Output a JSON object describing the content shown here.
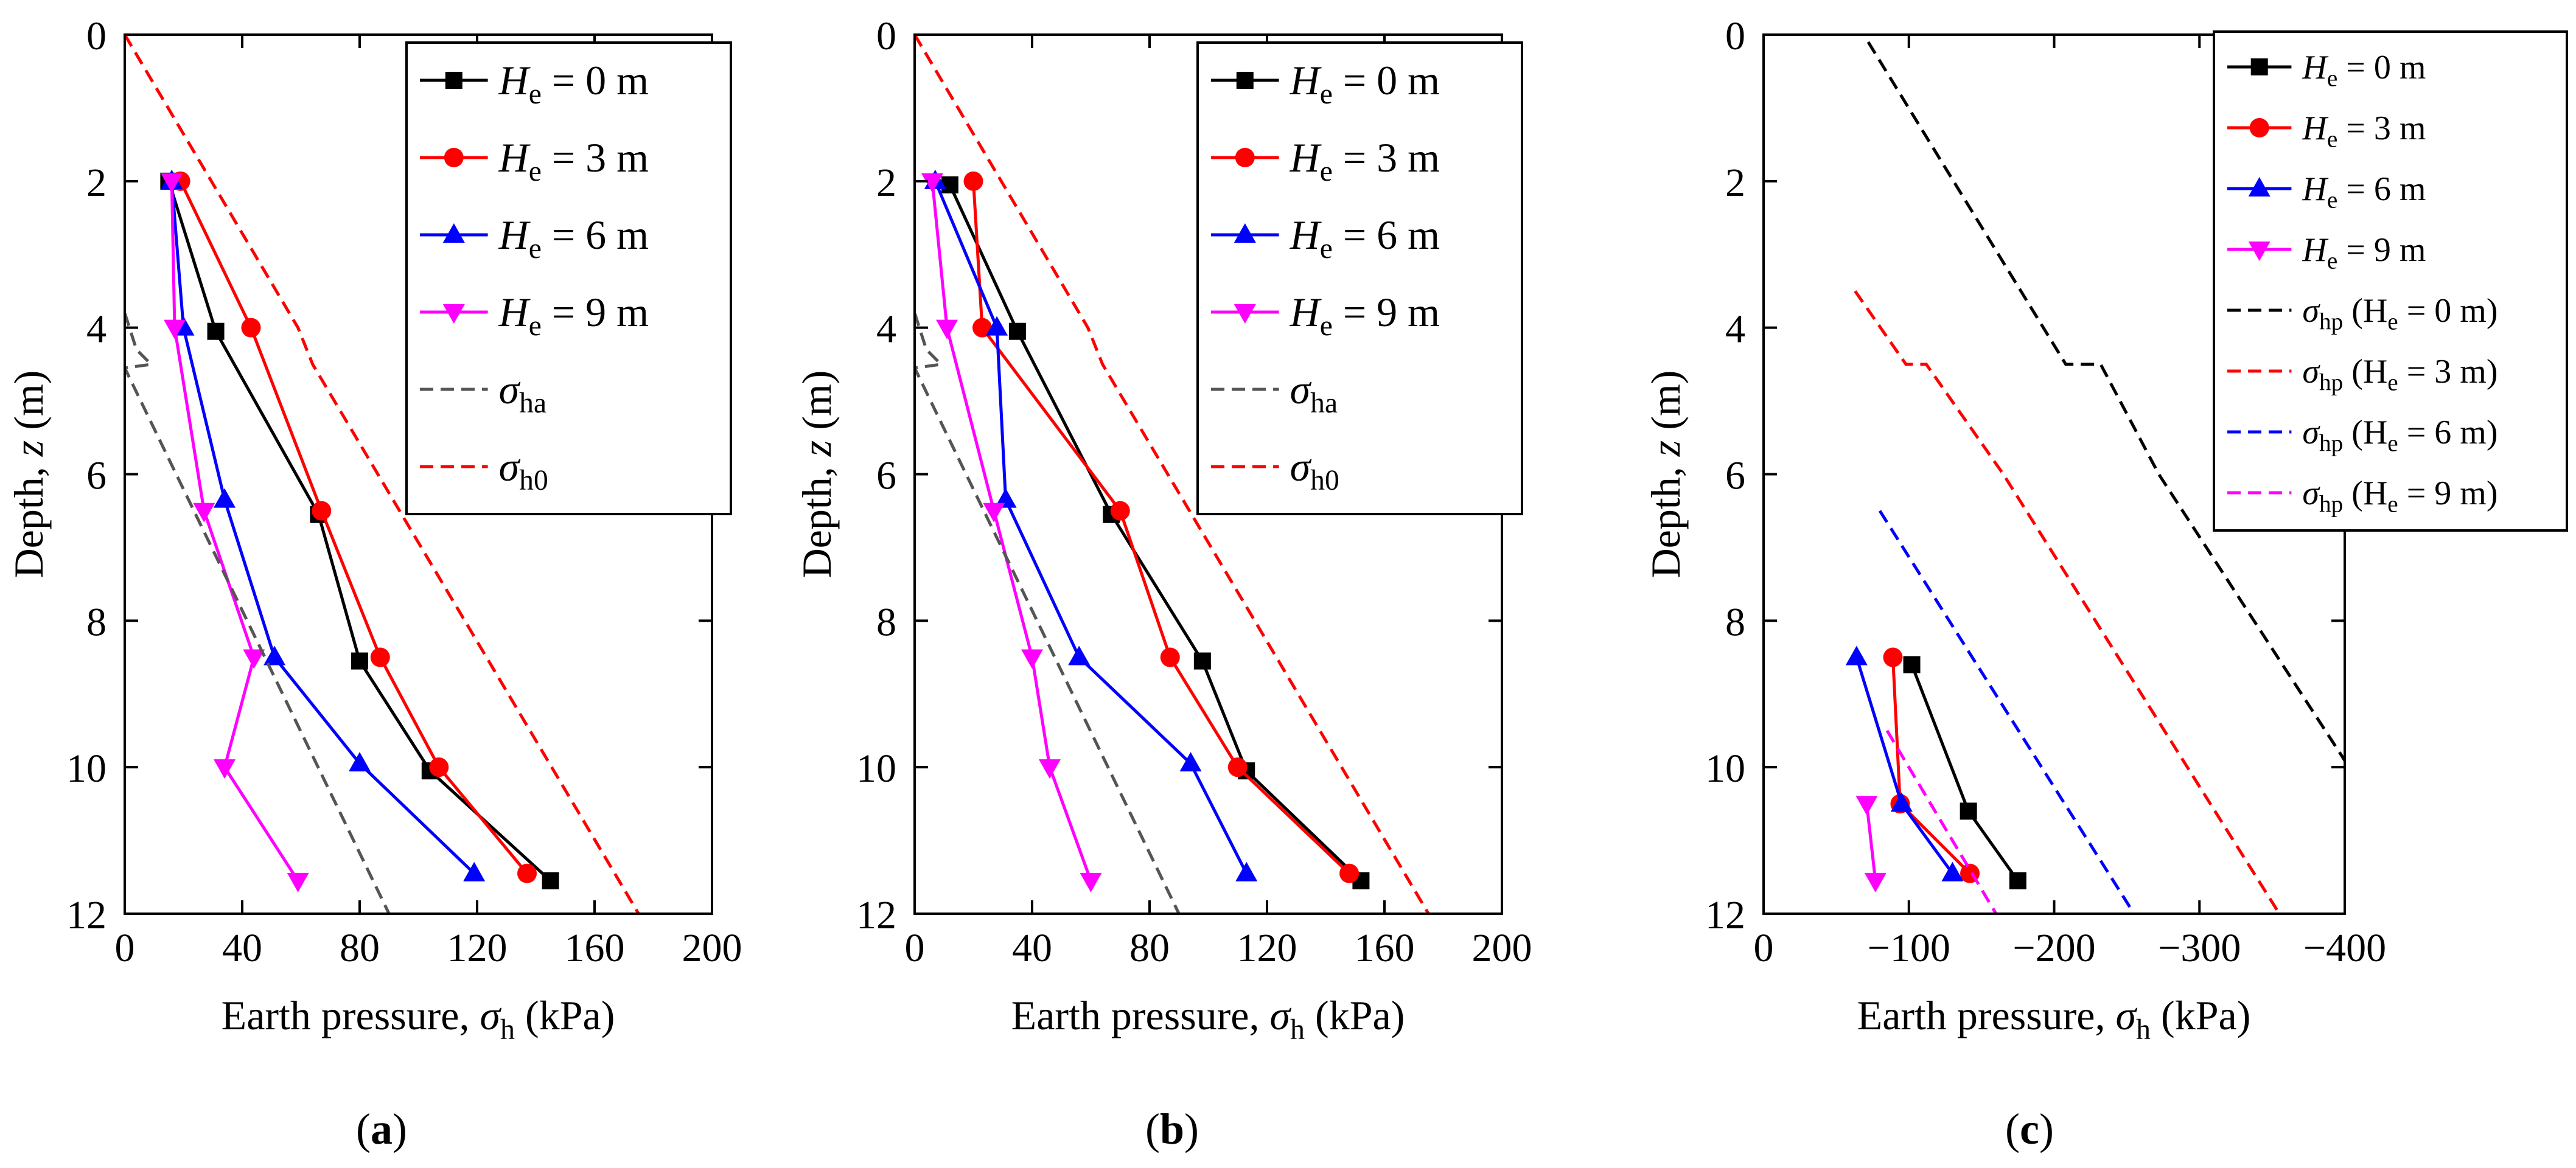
{
  "colors": {
    "black": "#000000",
    "red": "#ff0000",
    "blue": "#0000ff",
    "magenta": "#ff00ff",
    "gray": "#555555"
  },
  "chart_data": [
    {
      "panel": "a",
      "panel_label": "a",
      "type": "line",
      "xlabel": "Earth pressure, σh (kPa)",
      "ylabel": "Depth, z (m)",
      "xlim": [
        0,
        200
      ],
      "ylim": [
        12,
        0
      ],
      "xticks": [
        0,
        40,
        80,
        120,
        160,
        200
      ],
      "yticks": [
        0,
        2,
        4,
        6,
        8,
        10,
        12
      ],
      "legend_position": "top-right",
      "series": [
        {
          "name": "He = 0 m",
          "var": "H",
          "sub": "e",
          "rest": " = 0 m",
          "color": "#000000",
          "marker": "square",
          "style": "solid",
          "points": [
            [
              15,
              2.0
            ],
            [
              31,
              4.05
            ],
            [
              66,
              6.55
            ],
            [
              80,
              8.55
            ],
            [
              104,
              10.05
            ],
            [
              145,
              11.55
            ]
          ]
        },
        {
          "name": "He = 3 m",
          "var": "H",
          "sub": "e",
          "rest": " = 3 m",
          "color": "#ff0000",
          "marker": "circle",
          "style": "solid",
          "points": [
            [
              19,
              2.0
            ],
            [
              43,
              4.0
            ],
            [
              67,
              6.5
            ],
            [
              87,
              8.5
            ],
            [
              107,
              10.0
            ],
            [
              137,
              11.45
            ]
          ]
        },
        {
          "name": "He = 6 m",
          "var": "H",
          "sub": "e",
          "rest": " = 6 m",
          "color": "#0000ff",
          "marker": "triangle-up",
          "style": "solid",
          "points": [
            [
              16,
              2.0
            ],
            [
              20,
              4.0
            ],
            [
              34,
              6.35
            ],
            [
              51,
              8.5
            ],
            [
              80,
              9.95
            ],
            [
              119,
              11.45
            ]
          ]
        },
        {
          "name": "He = 9 m",
          "var": "H",
          "sub": "e",
          "rest": " = 9 m",
          "color": "#ff00ff",
          "marker": "triangle-down",
          "style": "solid",
          "points": [
            [
              16,
              2.0
            ],
            [
              17,
              4.0
            ],
            [
              27,
              6.5
            ],
            [
              44,
              8.5
            ],
            [
              34,
              10.0
            ],
            [
              59,
              11.55
            ]
          ]
        },
        {
          "name": "σha",
          "var": "σ",
          "sub": "ha",
          "rest": "",
          "color": "#555555",
          "marker": "none",
          "style": "dashed",
          "points": [
            [
              0,
              3.8
            ],
            [
              4,
              4.3
            ],
            [
              9,
              4.5
            ],
            [
              0,
              4.55
            ],
            [
              90,
              12.0
            ]
          ]
        },
        {
          "name": "σh0",
          "var": "σ",
          "sub": "h0",
          "rest": "",
          "color": "#ff0000",
          "marker": "none",
          "style": "dashed",
          "points": [
            [
              0,
              0.0
            ],
            [
              59,
              4.0
            ],
            [
              64,
              4.5
            ],
            [
              175,
              12.0
            ]
          ]
        }
      ]
    },
    {
      "panel": "b",
      "panel_label": "b",
      "type": "line",
      "xlabel": "Earth pressure, σh (kPa)",
      "ylabel": "Depth, z (m)",
      "xlim": [
        0,
        200
      ],
      "ylim": [
        12,
        0
      ],
      "xticks": [
        0,
        40,
        80,
        120,
        160,
        200
      ],
      "yticks": [
        0,
        2,
        4,
        6,
        8,
        10,
        12
      ],
      "legend_position": "top-right",
      "series": [
        {
          "name": "He = 0 m",
          "var": "H",
          "sub": "e",
          "rest": " = 0 m",
          "color": "#000000",
          "marker": "square",
          "style": "solid",
          "points": [
            [
              12,
              2.05
            ],
            [
              35,
              4.05
            ],
            [
              67,
              6.55
            ],
            [
              98,
              8.55
            ],
            [
              113,
              10.05
            ],
            [
              152,
              11.55
            ]
          ]
        },
        {
          "name": "He = 3 m",
          "var": "H",
          "sub": "e",
          "rest": " = 3 m",
          "color": "#ff0000",
          "marker": "circle",
          "style": "solid",
          "points": [
            [
              20,
              2.0
            ],
            [
              23,
              4.0
            ],
            [
              70,
              6.5
            ],
            [
              87,
              8.5
            ],
            [
              110,
              10.0
            ],
            [
              148,
              11.45
            ]
          ]
        },
        {
          "name": "He = 6 m",
          "var": "H",
          "sub": "e",
          "rest": " = 6 m",
          "color": "#0000ff",
          "marker": "triangle-up",
          "style": "solid",
          "points": [
            [
              7,
              2.0
            ],
            [
              28,
              4.0
            ],
            [
              31,
              6.35
            ],
            [
              56,
              8.5
            ],
            [
              94,
              9.95
            ],
            [
              113,
              11.45
            ]
          ]
        },
        {
          "name": "He = 9 m",
          "var": "H",
          "sub": "e",
          "rest": " = 9 m",
          "color": "#ff00ff",
          "marker": "triangle-down",
          "style": "solid",
          "points": [
            [
              6,
              2.0
            ],
            [
              11,
              4.0
            ],
            [
              27,
              6.5
            ],
            [
              40,
              8.5
            ],
            [
              46,
              10.0
            ],
            [
              60,
              11.55
            ]
          ]
        },
        {
          "name": "σha",
          "var": "σ",
          "sub": "ha",
          "rest": "",
          "color": "#555555",
          "marker": "none",
          "style": "dashed",
          "points": [
            [
              0,
              3.8
            ],
            [
              4,
              4.3
            ],
            [
              9,
              4.5
            ],
            [
              0,
              4.55
            ],
            [
              90,
              12.0
            ]
          ]
        },
        {
          "name": "σh0",
          "var": "σ",
          "sub": "h0",
          "rest": "",
          "color": "#ff0000",
          "marker": "none",
          "style": "dashed",
          "points": [
            [
              0,
              0.0
            ],
            [
              59,
              4.0
            ],
            [
              64,
              4.5
            ],
            [
              175,
              12.0
            ]
          ]
        }
      ]
    },
    {
      "panel": "c",
      "panel_label": "c",
      "type": "line",
      "xlabel": "Earth pressure, σh (kPa)",
      "ylabel": "Depth, z (m)",
      "xlim": [
        0,
        -400
      ],
      "ylim": [
        12,
        0
      ],
      "xticks": [
        0,
        -100,
        -200,
        -300,
        -400
      ],
      "xtick_labels": [
        "0",
        "−100",
        "−200",
        "−300",
        "−400"
      ],
      "yticks": [
        0,
        2,
        4,
        6,
        8,
        10,
        12
      ],
      "legend_position": "top-right",
      "series": [
        {
          "name": "He = 0 m",
          "var": "H",
          "sub": "e",
          "rest": " = 0 m",
          "color": "#000000",
          "marker": "square",
          "style": "solid",
          "points": [
            [
              -102,
              8.6
            ],
            [
              -141,
              10.6
            ],
            [
              -175,
              11.55
            ]
          ]
        },
        {
          "name": "He = 3 m",
          "var": "H",
          "sub": "e",
          "rest": " = 3 m",
          "color": "#ff0000",
          "marker": "circle",
          "style": "solid",
          "points": [
            [
              -89,
              8.5
            ],
            [
              -94,
              10.5
            ],
            [
              -142,
              11.45
            ]
          ]
        },
        {
          "name": "He = 6 m",
          "var": "H",
          "sub": "e",
          "rest": " = 6 m",
          "color": "#0000ff",
          "marker": "triangle-up",
          "style": "solid",
          "points": [
            [
              -64,
              8.5
            ],
            [
              -95,
              10.5
            ],
            [
              -130,
              11.45
            ]
          ]
        },
        {
          "name": "He = 9 m",
          "var": "H",
          "sub": "e",
          "rest": " = 9 m",
          "color": "#ff00ff",
          "marker": "triangle-down",
          "style": "solid",
          "points": [
            [
              -71,
              10.5
            ],
            [
              -77,
              11.55
            ]
          ]
        },
        {
          "name": "σhp (He = 0 m)",
          "var": "σ",
          "sub": "hp",
          "rest": " (H",
          "sub2": "e",
          "rest2": " = 0 m)",
          "color": "#000000",
          "marker": "none",
          "style": "dashed",
          "points": [
            [
              -72,
              0.1
            ],
            [
              -208,
              4.5
            ],
            [
              -232,
              4.5
            ],
            [
              -272,
              6.0
            ],
            [
              -403,
              10.0
            ]
          ]
        },
        {
          "name": "σhp (He = 3 m)",
          "var": "σ",
          "sub": "hp",
          "rest": " (H",
          "sub2": "e",
          "rest2": " = 3 m)",
          "color": "#ff0000",
          "marker": "none",
          "style": "dashed",
          "points": [
            [
              -63,
              3.5
            ],
            [
              -98,
              4.5
            ],
            [
              -112,
              4.5
            ],
            [
              -165,
              6.0
            ],
            [
              -355,
              12.0
            ]
          ]
        },
        {
          "name": "σhp (He = 6 m)",
          "var": "σ",
          "sub": "hp",
          "rest": " (H",
          "sub2": "e",
          "rest2": " = 6 m)",
          "color": "#0000ff",
          "marker": "none",
          "style": "dashed",
          "points": [
            [
              -80,
              6.5
            ],
            [
              -255,
              12.0
            ]
          ]
        },
        {
          "name": "σhp (He = 9 m)",
          "var": "σ",
          "sub": "hp",
          "rest": " (H",
          "sub2": "e",
          "rest2": " = 9 m)",
          "color": "#ff00ff",
          "marker": "none",
          "style": "dashed",
          "points": [
            [
              -85,
              9.5
            ],
            [
              -160,
              12.0
            ]
          ]
        }
      ]
    }
  ]
}
